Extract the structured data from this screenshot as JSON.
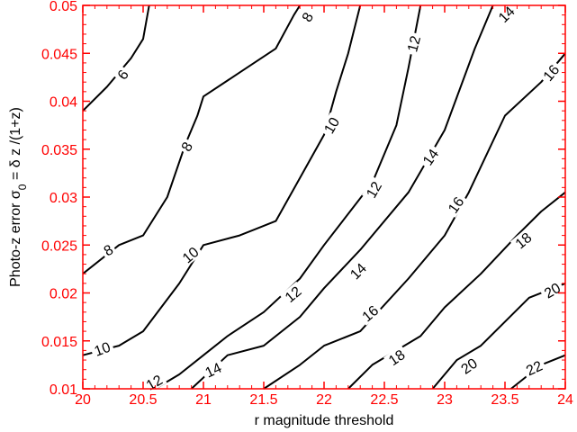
{
  "chart_data": {
    "type": "line",
    "subtype": "contour",
    "title": "",
    "xlabel": "r magnitude threshold",
    "ylabel_parts": [
      "Photo-z error σ",
      "0",
      " = δ z /(1+z)"
    ],
    "xlim": [
      20,
      24
    ],
    "ylim": [
      0.01,
      0.05
    ],
    "grid": false,
    "legend": "none",
    "xticks": [
      "20",
      "20.5",
      "21",
      "21.5",
      "22",
      "22.5",
      "23",
      "23.5",
      "24"
    ],
    "yticks": [
      "0.01",
      "0.015",
      "0.02",
      "0.025",
      "0.03",
      "0.035",
      "0.04",
      "0.045",
      "0.05"
    ],
    "colors": {
      "tick_labels": "#ff0000",
      "axes": "#ff0000",
      "lines": "#000000",
      "labels": "#000000"
    },
    "series": [
      {
        "name": "6",
        "x": [
          20.0,
          20.2,
          20.4,
          20.5,
          20.55
        ],
        "y": [
          0.039,
          0.0415,
          0.0445,
          0.0465,
          0.05
        ]
      },
      {
        "name": "8",
        "x": [
          20.0,
          20.3,
          20.5,
          20.7,
          20.85,
          20.95,
          21.0,
          21.3,
          21.6,
          21.75,
          21.8
        ],
        "y": [
          0.022,
          0.025,
          0.026,
          0.03,
          0.0355,
          0.0385,
          0.0405,
          0.043,
          0.0455,
          0.049,
          0.05
        ]
      },
      {
        "name": "10",
        "x": [
          20.0,
          20.3,
          20.5,
          20.8,
          21.0,
          21.3,
          21.6,
          21.8,
          22.0,
          22.1,
          22.2,
          22.3
        ],
        "y": [
          0.0135,
          0.0145,
          0.016,
          0.021,
          0.025,
          0.026,
          0.0275,
          0.032,
          0.0365,
          0.041,
          0.045,
          0.05
        ]
      },
      {
        "name": "12",
        "x": [
          20.6,
          20.8,
          21.0,
          21.2,
          21.5,
          21.8,
          22.0,
          22.4,
          22.6,
          22.7,
          22.8
        ],
        "y": [
          0.01,
          0.0115,
          0.0135,
          0.0155,
          0.018,
          0.0215,
          0.025,
          0.0315,
          0.0375,
          0.0435,
          0.05
        ]
      },
      {
        "name": "14",
        "x": [
          20.9,
          21.2,
          21.5,
          21.8,
          22.0,
          22.3,
          22.7,
          23.0,
          23.25,
          23.4
        ],
        "y": [
          0.01,
          0.0135,
          0.0145,
          0.0175,
          0.0205,
          0.0245,
          0.0305,
          0.037,
          0.0455,
          0.05
        ]
      },
      {
        "name": "16",
        "x": [
          21.5,
          21.8,
          22.0,
          22.3,
          22.7,
          23.0,
          23.2,
          23.5,
          23.8,
          24.0
        ],
        "y": [
          0.01,
          0.0125,
          0.0145,
          0.016,
          0.0215,
          0.026,
          0.0305,
          0.0385,
          0.042,
          0.045
        ]
      },
      {
        "name": "18",
        "x": [
          22.2,
          22.4,
          22.8,
          23.0,
          23.3,
          23.6,
          23.8,
          24.0
        ],
        "y": [
          0.01,
          0.0125,
          0.0155,
          0.0185,
          0.022,
          0.026,
          0.0285,
          0.0305
        ]
      },
      {
        "name": "20",
        "x": [
          22.9,
          23.1,
          23.3,
          23.7,
          24.0
        ],
        "y": [
          0.01,
          0.013,
          0.0145,
          0.0195,
          0.021
        ]
      },
      {
        "name": "22",
        "x": [
          23.55,
          23.8,
          24.0
        ],
        "y": [
          0.01,
          0.0125,
          0.0135
        ]
      }
    ],
    "contour_labels": [
      {
        "text": "6",
        "x": 20.33,
        "y": 0.0428,
        "angle": 55
      },
      {
        "text": "8",
        "x": 21.86,
        "y": 0.0488,
        "angle": 60
      },
      {
        "text": "8",
        "x": 20.86,
        "y": 0.0353,
        "angle": 60
      },
      {
        "text": "8",
        "x": 20.21,
        "y": 0.0245,
        "angle": 30
      },
      {
        "text": "10",
        "x": 22.06,
        "y": 0.0375,
        "angle": 60
      },
      {
        "text": "10",
        "x": 20.89,
        "y": 0.024,
        "angle": 40
      },
      {
        "text": "10",
        "x": 20.16,
        "y": 0.0142,
        "angle": 20
      },
      {
        "text": "12",
        "x": 22.74,
        "y": 0.046,
        "angle": 75
      },
      {
        "text": "12",
        "x": 22.41,
        "y": 0.0308,
        "angle": 60
      },
      {
        "text": "12",
        "x": 21.74,
        "y": 0.0199,
        "angle": 40
      },
      {
        "text": "12",
        "x": 20.59,
        "y": 0.0107,
        "angle": 30
      },
      {
        "text": "14",
        "x": 23.51,
        "y": 0.0491,
        "angle": 45
      },
      {
        "text": "14",
        "x": 22.88,
        "y": 0.0342,
        "angle": 55
      },
      {
        "text": "14",
        "x": 22.28,
        "y": 0.0223,
        "angle": 45
      },
      {
        "text": "14",
        "x": 21.08,
        "y": 0.012,
        "angle": 25
      },
      {
        "text": "16",
        "x": 23.88,
        "y": 0.043,
        "angle": 50
      },
      {
        "text": "16",
        "x": 23.09,
        "y": 0.0292,
        "angle": 55
      },
      {
        "text": "16",
        "x": 22.38,
        "y": 0.0179,
        "angle": 40
      },
      {
        "text": "18",
        "x": 23.65,
        "y": 0.0255,
        "angle": 40
      },
      {
        "text": "18",
        "x": 22.6,
        "y": 0.0133,
        "angle": 35
      },
      {
        "text": "20",
        "x": 23.89,
        "y": 0.0203,
        "angle": 30
      },
      {
        "text": "20",
        "x": 23.2,
        "y": 0.0124,
        "angle": 35
      },
      {
        "text": "22",
        "x": 23.74,
        "y": 0.0122,
        "angle": 25
      }
    ]
  }
}
